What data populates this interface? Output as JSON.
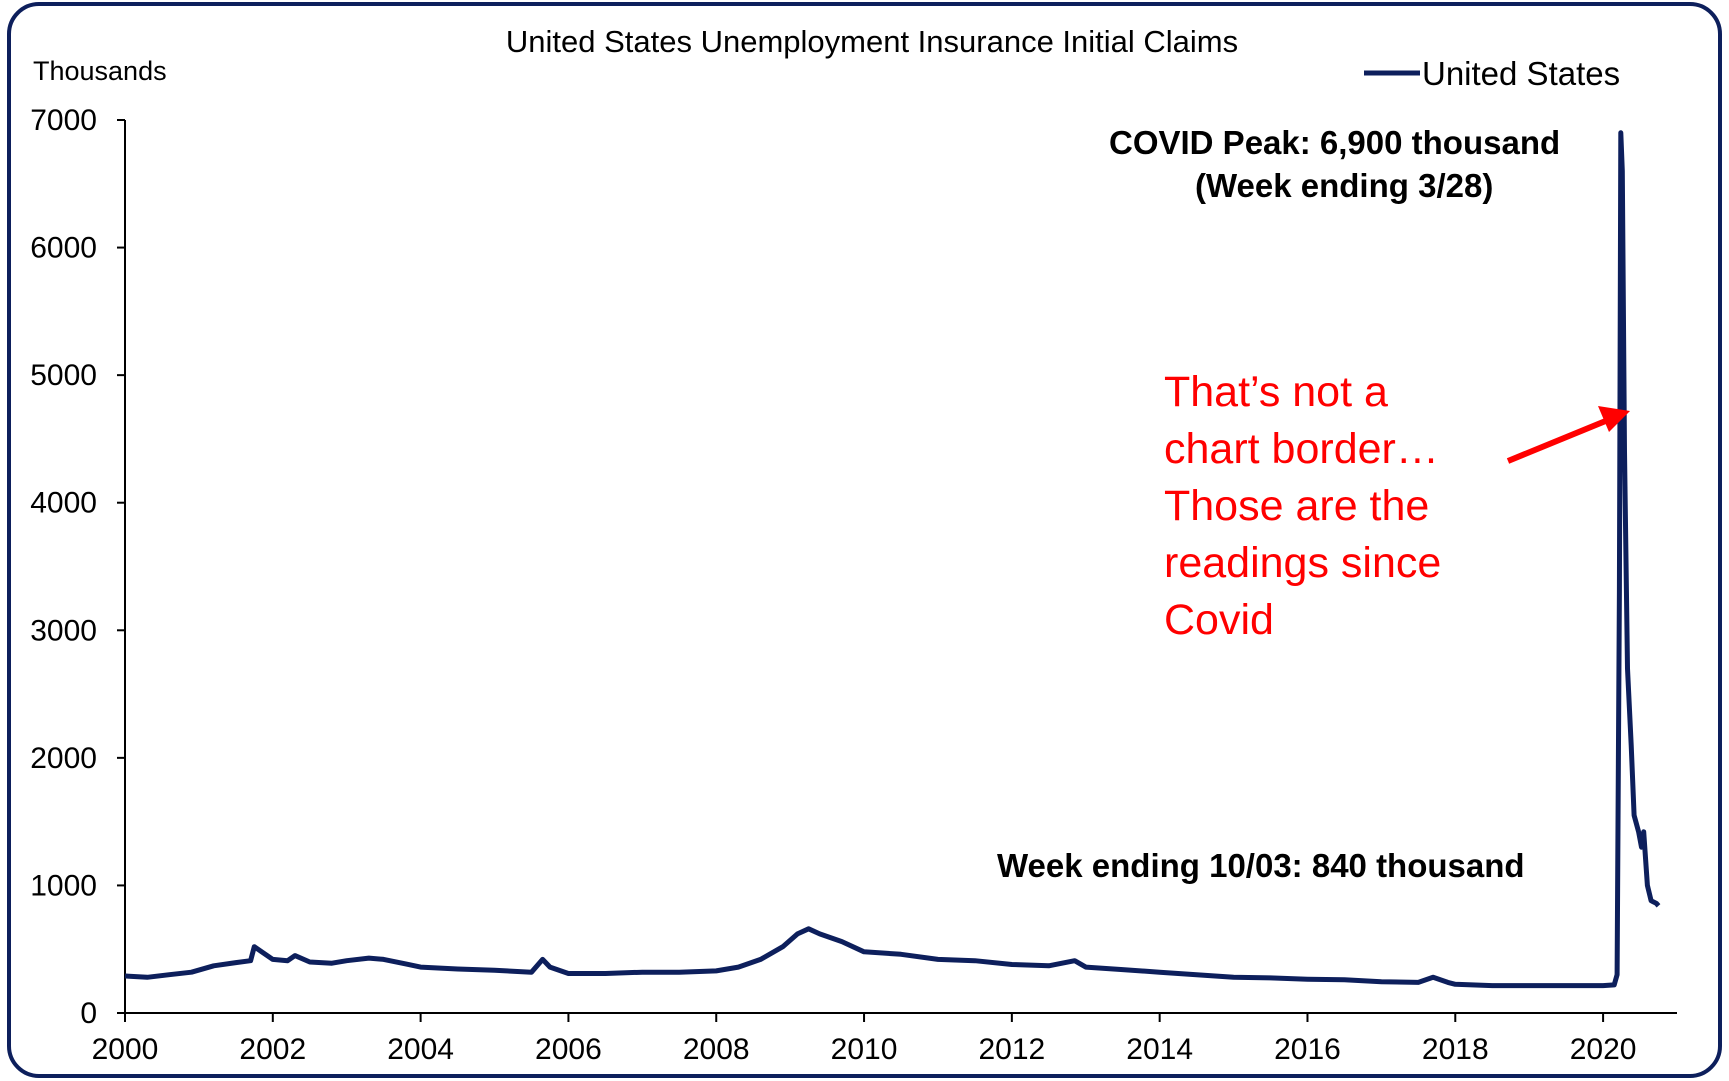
{
  "chart_data": {
    "type": "line",
    "title": "United States Unemployment Insurance Initial Claims",
    "ylabel": "Thousands",
    "xlabel": "",
    "xlim": [
      2000,
      2021
    ],
    "ylim": [
      0,
      7000
    ],
    "x_ticks": [
      "2000",
      "2002",
      "2004",
      "2006",
      "2008",
      "2010",
      "2012",
      "2014",
      "2016",
      "2018",
      "2020"
    ],
    "y_ticks": [
      "0",
      "1000",
      "2000",
      "3000",
      "4000",
      "5000",
      "6000",
      "7000"
    ],
    "grid": false,
    "legend": {
      "placement": "top-right",
      "entries": [
        "United States"
      ]
    },
    "series": [
      {
        "name": "United States",
        "color": "#0d1f5c",
        "points": [
          [
            2000.0,
            290
          ],
          [
            2000.3,
            280
          ],
          [
            2000.6,
            300
          ],
          [
            2000.9,
            320
          ],
          [
            2001.2,
            370
          ],
          [
            2001.5,
            395
          ],
          [
            2001.7,
            410
          ],
          [
            2001.75,
            520
          ],
          [
            2001.85,
            480
          ],
          [
            2002.0,
            420
          ],
          [
            2002.2,
            410
          ],
          [
            2002.3,
            450
          ],
          [
            2002.5,
            400
          ],
          [
            2002.8,
            390
          ],
          [
            2003.0,
            410
          ],
          [
            2003.3,
            430
          ],
          [
            2003.5,
            420
          ],
          [
            2003.8,
            385
          ],
          [
            2004.0,
            360
          ],
          [
            2004.5,
            345
          ],
          [
            2005.0,
            335
          ],
          [
            2005.5,
            320
          ],
          [
            2005.65,
            420
          ],
          [
            2005.75,
            360
          ],
          [
            2006.0,
            310
          ],
          [
            2006.5,
            310
          ],
          [
            2007.0,
            320
          ],
          [
            2007.5,
            320
          ],
          [
            2008.0,
            330
          ],
          [
            2008.3,
            360
          ],
          [
            2008.6,
            420
          ],
          [
            2008.9,
            520
          ],
          [
            2009.1,
            620
          ],
          [
            2009.25,
            660
          ],
          [
            2009.4,
            620
          ],
          [
            2009.7,
            560
          ],
          [
            2010.0,
            480
          ],
          [
            2010.5,
            460
          ],
          [
            2011.0,
            420
          ],
          [
            2011.5,
            410
          ],
          [
            2012.0,
            380
          ],
          [
            2012.5,
            370
          ],
          [
            2012.85,
            410
          ],
          [
            2013.0,
            360
          ],
          [
            2013.5,
            340
          ],
          [
            2014.0,
            320
          ],
          [
            2014.5,
            300
          ],
          [
            2015.0,
            280
          ],
          [
            2015.5,
            275
          ],
          [
            2016.0,
            265
          ],
          [
            2016.5,
            260
          ],
          [
            2017.0,
            245
          ],
          [
            2017.5,
            240
          ],
          [
            2017.7,
            280
          ],
          [
            2017.9,
            240
          ],
          [
            2018.0,
            225
          ],
          [
            2018.5,
            215
          ],
          [
            2019.0,
            215
          ],
          [
            2019.5,
            215
          ],
          [
            2020.0,
            215
          ],
          [
            2020.15,
            220
          ],
          [
            2020.19,
            300
          ],
          [
            2020.22,
            3300
          ],
          [
            2020.24,
            6900
          ],
          [
            2020.26,
            6600
          ],
          [
            2020.29,
            4400
          ],
          [
            2020.33,
            2700
          ],
          [
            2020.38,
            2100
          ],
          [
            2020.42,
            1550
          ],
          [
            2020.48,
            1420
          ],
          [
            2020.52,
            1300
          ],
          [
            2020.55,
            1420
          ],
          [
            2020.6,
            1000
          ],
          [
            2020.65,
            880
          ],
          [
            2020.72,
            860
          ],
          [
            2020.75,
            840
          ]
        ]
      }
    ],
    "annotations": {
      "peak_line1": "COVID Peak: 6,900 thousand",
      "peak_line2": "(Week ending 3/28)",
      "latest": "Week ending 10/03: 840 thousand",
      "red_note": [
        "That’s not a",
        "chart border…",
        "Those are the",
        "readings since",
        "Covid"
      ],
      "red_color": "#ff0000"
    },
    "colors": {
      "frame": "#0d1f5c",
      "line": "#0d1f5c",
      "axis": "#000000"
    }
  }
}
